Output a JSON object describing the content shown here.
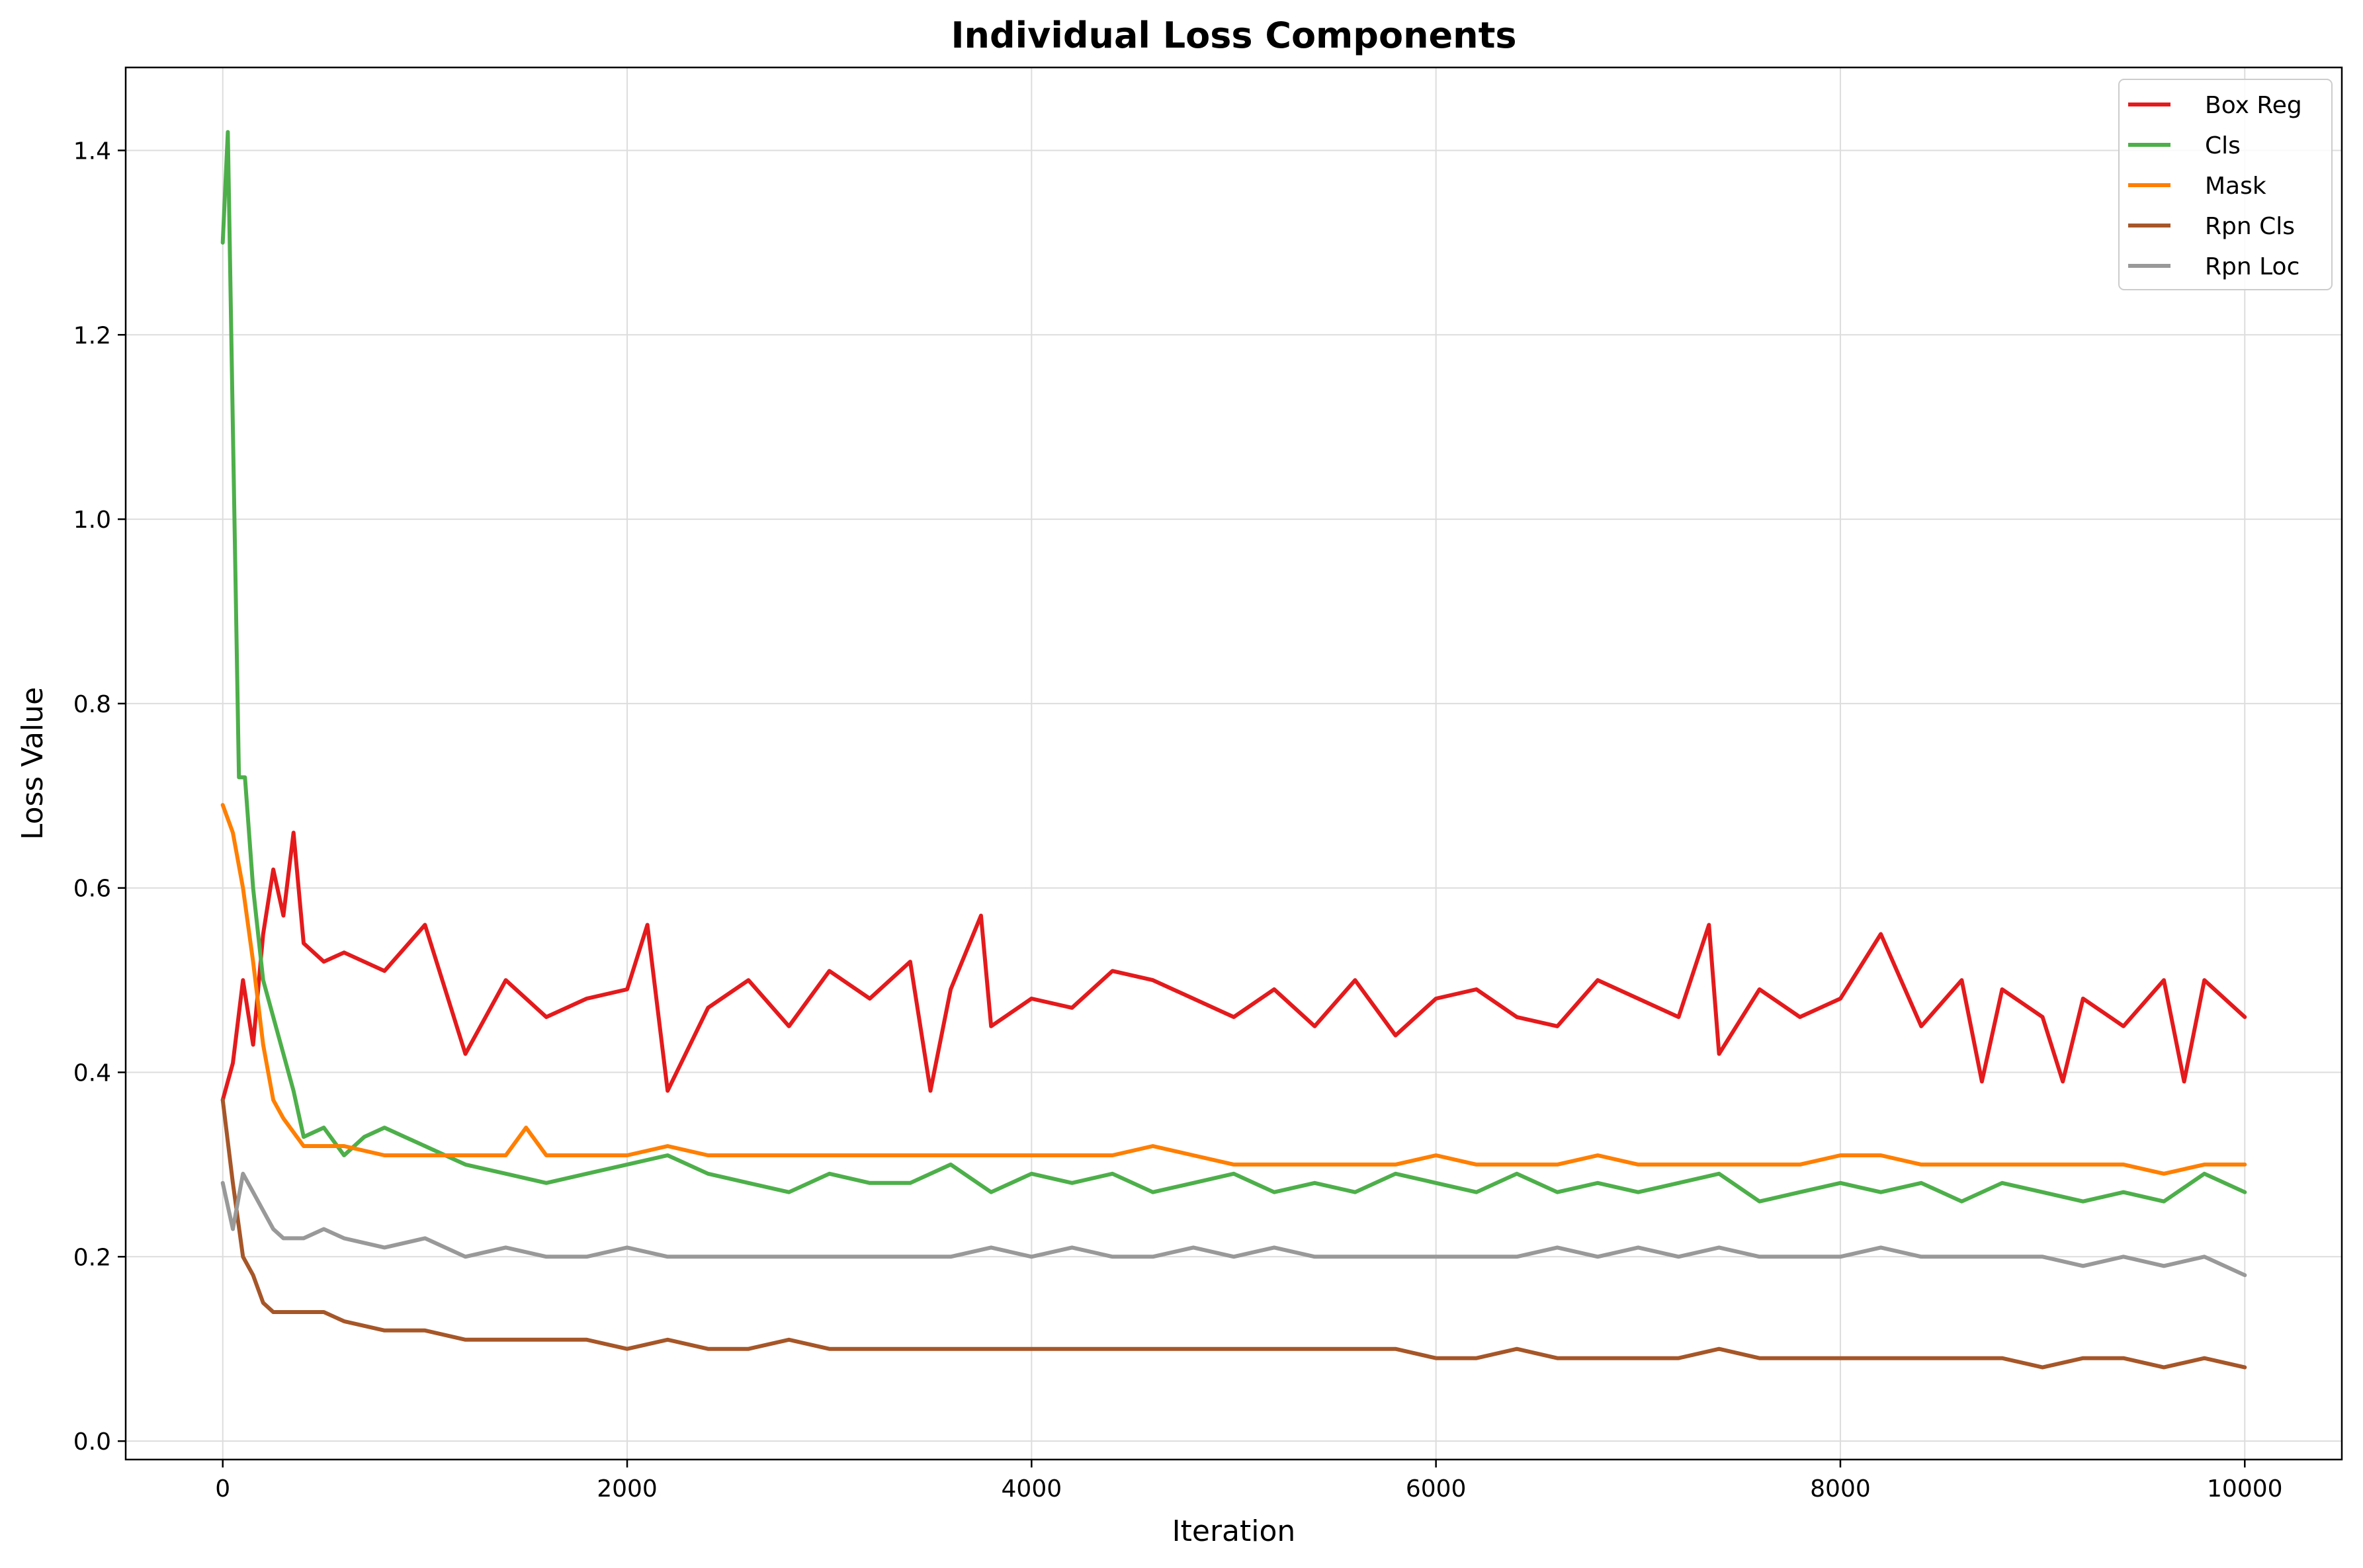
{
  "chart_data": {
    "type": "line",
    "title": "Individual Loss Components",
    "xlabel": "Iteration",
    "ylabel": "Loss Value",
    "xlim": [
      -480,
      10480
    ],
    "ylim": [
      -0.02,
      1.49
    ],
    "xticks": [
      0,
      2000,
      4000,
      6000,
      8000,
      10000
    ],
    "yticks": [
      0.0,
      0.2,
      0.4,
      0.6,
      0.8,
      1.0,
      1.2,
      1.4
    ],
    "grid": true,
    "legend_position": "top-right",
    "series": [
      {
        "name": "Box Reg",
        "color": "#e41a1c",
        "points": [
          [
            0,
            0.37
          ],
          [
            50,
            0.41
          ],
          [
            100,
            0.5
          ],
          [
            150,
            0.43
          ],
          [
            200,
            0.55
          ],
          [
            250,
            0.62
          ],
          [
            300,
            0.57
          ],
          [
            350,
            0.66
          ],
          [
            400,
            0.54
          ],
          [
            500,
            0.52
          ],
          [
            600,
            0.53
          ],
          [
            800,
            0.51
          ],
          [
            1000,
            0.56
          ],
          [
            1200,
            0.42
          ],
          [
            1400,
            0.5
          ],
          [
            1600,
            0.46
          ],
          [
            1800,
            0.48
          ],
          [
            2000,
            0.49
          ],
          [
            2100,
            0.56
          ],
          [
            2200,
            0.38
          ],
          [
            2400,
            0.47
          ],
          [
            2600,
            0.5
          ],
          [
            2800,
            0.45
          ],
          [
            3000,
            0.51
          ],
          [
            3200,
            0.48
          ],
          [
            3400,
            0.52
          ],
          [
            3500,
            0.38
          ],
          [
            3600,
            0.49
          ],
          [
            3750,
            0.57
          ],
          [
            3800,
            0.45
          ],
          [
            4000,
            0.48
          ],
          [
            4200,
            0.47
          ],
          [
            4400,
            0.51
          ],
          [
            4600,
            0.5
          ],
          [
            4800,
            0.48
          ],
          [
            5000,
            0.46
          ],
          [
            5200,
            0.49
          ],
          [
            5400,
            0.45
          ],
          [
            5600,
            0.5
          ],
          [
            5800,
            0.44
          ],
          [
            6000,
            0.48
          ],
          [
            6200,
            0.49
          ],
          [
            6400,
            0.46
          ],
          [
            6600,
            0.45
          ],
          [
            6800,
            0.5
          ],
          [
            7000,
            0.48
          ],
          [
            7200,
            0.46
          ],
          [
            7350,
            0.56
          ],
          [
            7400,
            0.42
          ],
          [
            7600,
            0.49
          ],
          [
            7800,
            0.46
          ],
          [
            8000,
            0.48
          ],
          [
            8200,
            0.55
          ],
          [
            8400,
            0.45
          ],
          [
            8600,
            0.5
          ],
          [
            8700,
            0.39
          ],
          [
            8800,
            0.49
          ],
          [
            9000,
            0.46
          ],
          [
            9100,
            0.39
          ],
          [
            9200,
            0.48
          ],
          [
            9400,
            0.45
          ],
          [
            9600,
            0.5
          ],
          [
            9700,
            0.39
          ],
          [
            9800,
            0.5
          ],
          [
            10000,
            0.46
          ]
        ]
      },
      {
        "name": "Cls",
        "color": "#4daf4a",
        "points": [
          [
            0,
            1.3
          ],
          [
            25,
            1.42
          ],
          [
            50,
            1.1
          ],
          [
            80,
            0.72
          ],
          [
            110,
            0.72
          ],
          [
            150,
            0.6
          ],
          [
            200,
            0.5
          ],
          [
            250,
            0.46
          ],
          [
            300,
            0.42
          ],
          [
            350,
            0.38
          ],
          [
            400,
            0.33
          ],
          [
            500,
            0.34
          ],
          [
            600,
            0.31
          ],
          [
            700,
            0.33
          ],
          [
            800,
            0.34
          ],
          [
            900,
            0.33
          ],
          [
            1000,
            0.32
          ],
          [
            1200,
            0.3
          ],
          [
            1400,
            0.29
          ],
          [
            1600,
            0.28
          ],
          [
            1800,
            0.29
          ],
          [
            2000,
            0.3
          ],
          [
            2200,
            0.31
          ],
          [
            2400,
            0.29
          ],
          [
            2600,
            0.28
          ],
          [
            2800,
            0.27
          ],
          [
            3000,
            0.29
          ],
          [
            3200,
            0.28
          ],
          [
            3400,
            0.28
          ],
          [
            3600,
            0.3
          ],
          [
            3800,
            0.27
          ],
          [
            4000,
            0.29
          ],
          [
            4200,
            0.28
          ],
          [
            4400,
            0.29
          ],
          [
            4600,
            0.27
          ],
          [
            4800,
            0.28
          ],
          [
            5000,
            0.29
          ],
          [
            5200,
            0.27
          ],
          [
            5400,
            0.28
          ],
          [
            5600,
            0.27
          ],
          [
            5800,
            0.29
          ],
          [
            6000,
            0.28
          ],
          [
            6200,
            0.27
          ],
          [
            6400,
            0.29
          ],
          [
            6600,
            0.27
          ],
          [
            6800,
            0.28
          ],
          [
            7000,
            0.27
          ],
          [
            7200,
            0.28
          ],
          [
            7400,
            0.29
          ],
          [
            7600,
            0.26
          ],
          [
            7800,
            0.27
          ],
          [
            8000,
            0.28
          ],
          [
            8200,
            0.27
          ],
          [
            8400,
            0.28
          ],
          [
            8600,
            0.26
          ],
          [
            8800,
            0.28
          ],
          [
            9000,
            0.27
          ],
          [
            9200,
            0.26
          ],
          [
            9400,
            0.27
          ],
          [
            9600,
            0.26
          ],
          [
            9800,
            0.29
          ],
          [
            10000,
            0.27
          ]
        ]
      },
      {
        "name": "Mask",
        "color": "#ff7f00",
        "points": [
          [
            0,
            0.69
          ],
          [
            50,
            0.66
          ],
          [
            100,
            0.6
          ],
          [
            150,
            0.52
          ],
          [
            200,
            0.43
          ],
          [
            250,
            0.37
          ],
          [
            300,
            0.35
          ],
          [
            400,
            0.32
          ],
          [
            500,
            0.32
          ],
          [
            600,
            0.32
          ],
          [
            800,
            0.31
          ],
          [
            1000,
            0.31
          ],
          [
            1200,
            0.31
          ],
          [
            1400,
            0.31
          ],
          [
            1500,
            0.34
          ],
          [
            1600,
            0.31
          ],
          [
            1800,
            0.31
          ],
          [
            2000,
            0.31
          ],
          [
            2200,
            0.32
          ],
          [
            2400,
            0.31
          ],
          [
            2600,
            0.31
          ],
          [
            2800,
            0.31
          ],
          [
            3000,
            0.31
          ],
          [
            3200,
            0.31
          ],
          [
            3400,
            0.31
          ],
          [
            3600,
            0.31
          ],
          [
            3800,
            0.31
          ],
          [
            4000,
            0.31
          ],
          [
            4200,
            0.31
          ],
          [
            4400,
            0.31
          ],
          [
            4600,
            0.32
          ],
          [
            4800,
            0.31
          ],
          [
            5000,
            0.3
          ],
          [
            5200,
            0.3
          ],
          [
            5400,
            0.3
          ],
          [
            5600,
            0.3
          ],
          [
            5800,
            0.3
          ],
          [
            6000,
            0.31
          ],
          [
            6200,
            0.3
          ],
          [
            6400,
            0.3
          ],
          [
            6600,
            0.3
          ],
          [
            6800,
            0.31
          ],
          [
            7000,
            0.3
          ],
          [
            7200,
            0.3
          ],
          [
            7400,
            0.3
          ],
          [
            7600,
            0.3
          ],
          [
            7800,
            0.3
          ],
          [
            8000,
            0.31
          ],
          [
            8200,
            0.31
          ],
          [
            8400,
            0.3
          ],
          [
            8600,
            0.3
          ],
          [
            8800,
            0.3
          ],
          [
            9000,
            0.3
          ],
          [
            9200,
            0.3
          ],
          [
            9400,
            0.3
          ],
          [
            9600,
            0.29
          ],
          [
            9800,
            0.3
          ],
          [
            10000,
            0.3
          ]
        ]
      },
      {
        "name": "Rpn Cls",
        "color": "#a65628",
        "points": [
          [
            0,
            0.37
          ],
          [
            50,
            0.28
          ],
          [
            100,
            0.2
          ],
          [
            150,
            0.18
          ],
          [
            200,
            0.15
          ],
          [
            250,
            0.14
          ],
          [
            300,
            0.14
          ],
          [
            400,
            0.14
          ],
          [
            500,
            0.14
          ],
          [
            600,
            0.13
          ],
          [
            800,
            0.12
          ],
          [
            1000,
            0.12
          ],
          [
            1200,
            0.11
          ],
          [
            1400,
            0.11
          ],
          [
            1600,
            0.11
          ],
          [
            1800,
            0.11
          ],
          [
            2000,
            0.1
          ],
          [
            2200,
            0.11
          ],
          [
            2400,
            0.1
          ],
          [
            2600,
            0.1
          ],
          [
            2800,
            0.11
          ],
          [
            3000,
            0.1
          ],
          [
            3200,
            0.1
          ],
          [
            3400,
            0.1
          ],
          [
            3600,
            0.1
          ],
          [
            3800,
            0.1
          ],
          [
            4000,
            0.1
          ],
          [
            4200,
            0.1
          ],
          [
            4400,
            0.1
          ],
          [
            4600,
            0.1
          ],
          [
            4800,
            0.1
          ],
          [
            5000,
            0.1
          ],
          [
            5200,
            0.1
          ],
          [
            5400,
            0.1
          ],
          [
            5600,
            0.1
          ],
          [
            5800,
            0.1
          ],
          [
            6000,
            0.09
          ],
          [
            6200,
            0.09
          ],
          [
            6400,
            0.1
          ],
          [
            6600,
            0.09
          ],
          [
            6800,
            0.09
          ],
          [
            7000,
            0.09
          ],
          [
            7200,
            0.09
          ],
          [
            7400,
            0.1
          ],
          [
            7600,
            0.09
          ],
          [
            7800,
            0.09
          ],
          [
            8000,
            0.09
          ],
          [
            8200,
            0.09
          ],
          [
            8400,
            0.09
          ],
          [
            8600,
            0.09
          ],
          [
            8800,
            0.09
          ],
          [
            9000,
            0.08
          ],
          [
            9200,
            0.09
          ],
          [
            9400,
            0.09
          ],
          [
            9600,
            0.08
          ],
          [
            9800,
            0.09
          ],
          [
            10000,
            0.08
          ]
        ]
      },
      {
        "name": "Rpn Loc",
        "color": "#999999",
        "points": [
          [
            0,
            0.28
          ],
          [
            50,
            0.23
          ],
          [
            100,
            0.29
          ],
          [
            150,
            0.27
          ],
          [
            200,
            0.25
          ],
          [
            250,
            0.23
          ],
          [
            300,
            0.22
          ],
          [
            400,
            0.22
          ],
          [
            500,
            0.23
          ],
          [
            600,
            0.22
          ],
          [
            800,
            0.21
          ],
          [
            1000,
            0.22
          ],
          [
            1200,
            0.2
          ],
          [
            1400,
            0.21
          ],
          [
            1600,
            0.2
          ],
          [
            1800,
            0.2
          ],
          [
            2000,
            0.21
          ],
          [
            2200,
            0.2
          ],
          [
            2400,
            0.2
          ],
          [
            2600,
            0.2
          ],
          [
            2800,
            0.2
          ],
          [
            3000,
            0.2
          ],
          [
            3200,
            0.2
          ],
          [
            3400,
            0.2
          ],
          [
            3600,
            0.2
          ],
          [
            3800,
            0.21
          ],
          [
            4000,
            0.2
          ],
          [
            4200,
            0.21
          ],
          [
            4400,
            0.2
          ],
          [
            4600,
            0.2
          ],
          [
            4800,
            0.21
          ],
          [
            5000,
            0.2
          ],
          [
            5200,
            0.21
          ],
          [
            5400,
            0.2
          ],
          [
            5600,
            0.2
          ],
          [
            5800,
            0.2
          ],
          [
            6000,
            0.2
          ],
          [
            6200,
            0.2
          ],
          [
            6400,
            0.2
          ],
          [
            6600,
            0.21
          ],
          [
            6800,
            0.2
          ],
          [
            7000,
            0.21
          ],
          [
            7200,
            0.2
          ],
          [
            7400,
            0.21
          ],
          [
            7600,
            0.2
          ],
          [
            7800,
            0.2
          ],
          [
            8000,
            0.2
          ],
          [
            8200,
            0.21
          ],
          [
            8400,
            0.2
          ],
          [
            8600,
            0.2
          ],
          [
            8800,
            0.2
          ],
          [
            9000,
            0.2
          ],
          [
            9200,
            0.19
          ],
          [
            9400,
            0.2
          ],
          [
            9600,
            0.19
          ],
          [
            9800,
            0.2
          ],
          [
            10000,
            0.18
          ]
        ]
      }
    ]
  }
}
